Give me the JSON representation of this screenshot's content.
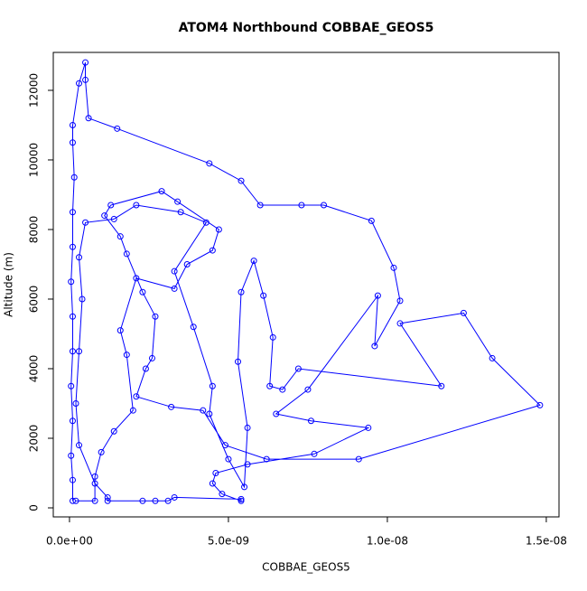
{
  "chart_data": {
    "type": "line",
    "title": "ATOM4 Northbound COBBAE_GEOS5",
    "x_label": "COBBAE_GEOS5",
    "y_label": "Altitude (m)",
    "color": "#0000ff",
    "markers": true,
    "x": [
      1e-10,
      1e-10,
      5e-11,
      1e-10,
      5e-11,
      1e-10,
      1e-10,
      5e-11,
      1e-10,
      1e-10,
      1.5e-10,
      1e-10,
      1e-10,
      3e-10,
      5e-10,
      5e-10,
      6e-10,
      1.5e-09,
      4.4e-09,
      5.4e-09,
      6e-09,
      7.3e-09,
      8e-09,
      9.5e-09,
      1.02e-08,
      1.04e-08,
      9.6e-09,
      9.7e-09,
      7.5e-09,
      6.5e-09,
      7.6e-09,
      9.4e-09,
      7.7e-09,
      5.6e-09,
      4.6e-09,
      4.5e-09,
      4.8e-09,
      5.4e-09,
      5.4e-09,
      3.3e-09,
      3.1e-09,
      2.7e-09,
      2.3e-09,
      1.2e-09,
      1.2e-09,
      8e-10,
      3e-10,
      2e-10,
      3e-10,
      4e-10,
      3e-10,
      5e-10,
      1.4e-09,
      2.1e-09,
      3.5e-09,
      4.3e-09,
      3.3e-09,
      3.9e-09,
      4.5e-09,
      4.4e-09,
      5e-09,
      5.5e-09,
      5.6e-09,
      5.3e-09,
      5.4e-09,
      5.8e-09,
      6.1e-09,
      6.4e-09,
      6.3e-09,
      6.7e-09,
      7.2e-09,
      1.17e-08,
      1.04e-08,
      1.24e-08,
      1.33e-08,
      1.48e-08,
      9.1e-09,
      6.2e-09,
      4.9e-09,
      4.2e-09,
      3.2e-09,
      2.1e-09,
      2.4e-09,
      2.6e-09,
      2.7e-09,
      2.3e-09,
      1.8e-09,
      1.6e-09,
      1.1e-09,
      1.3e-09,
      2.9e-09,
      3.4e-09,
      4.7e-09,
      4.5e-09,
      3.7e-09,
      3.3e-09,
      2.1e-09,
      1.6e-09,
      1.8e-09,
      2e-09,
      1.4e-09,
      1e-09,
      8e-10,
      8e-10,
      2e-10
    ],
    "series": [
      {
        "values": [
          200,
          800,
          1500,
          2500,
          3500,
          4500,
          5500,
          6500,
          7500,
          8500,
          9500,
          10500,
          11000,
          12200,
          12800,
          12300,
          11200,
          10900,
          9900,
          9400,
          8700,
          8700,
          8700,
          8250,
          6900,
          5950,
          4650,
          6100,
          3400,
          2700,
          2500,
          2300,
          1550,
          1250,
          1000,
          700,
          400,
          200,
          250,
          300,
          200,
          200,
          200,
          200,
          300,
          700,
          1800,
          3000,
          4500,
          6000,
          7200,
          8200,
          8300,
          8700,
          8500,
          8200,
          6800,
          5200,
          3500,
          2700,
          1400,
          600,
          2300,
          4200,
          6200,
          7100,
          6100,
          4900,
          3500,
          3400,
          4000,
          3500,
          5300,
          5600,
          4300,
          2950,
          1400,
          1400,
          1800,
          2800,
          2900,
          3200,
          4000,
          4300,
          5500,
          6200,
          7300,
          7800,
          8400,
          8700,
          9100,
          8800,
          8000,
          7400,
          7000,
          6300,
          6600,
          5100,
          4400,
          2800,
          2200,
          1600,
          900,
          200,
          200
        ]
      }
    ],
    "xlim": [
      -5.1e-10,
      1.54e-08
    ],
    "ylim": [
      -260,
      13090
    ],
    "xticks": [
      {
        "value": 0,
        "label": "0.0e+00"
      },
      {
        "value": 5e-09,
        "label": "5.0e-09"
      },
      {
        "value": 1e-08,
        "label": "1.0e-08"
      },
      {
        "value": 1.5e-08,
        "label": "1.5e-08"
      }
    ],
    "yticks": [
      0,
      2000,
      4000,
      6000,
      8000,
      10000,
      12000
    ]
  }
}
